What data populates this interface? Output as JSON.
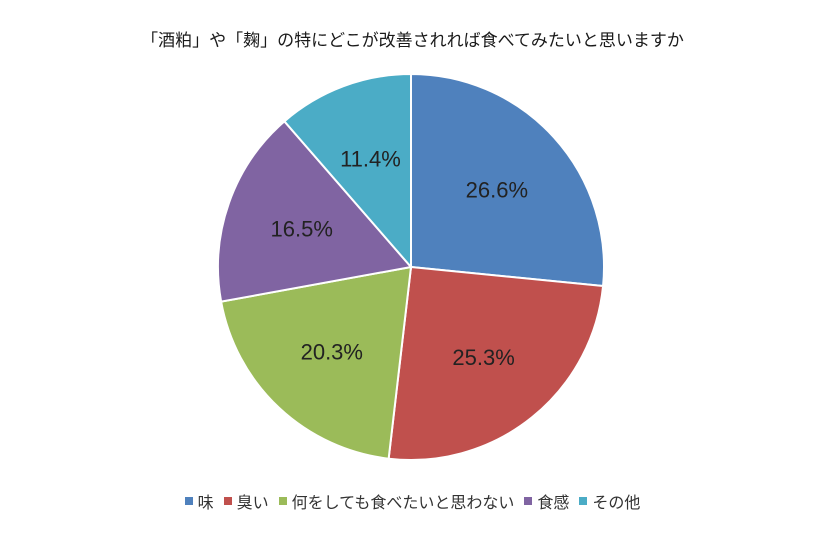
{
  "chart_data": {
    "type": "pie",
    "title": "「酒粕」や「麹」の特にどこが改善されれば食べてみたいと思いますか",
    "slices": [
      {
        "label": "味",
        "value": 26.6,
        "display": "26.6%",
        "color": "#4f81bd"
      },
      {
        "label": "臭い",
        "value": 25.3,
        "display": "25.3%",
        "color": "#c0504d"
      },
      {
        "label": "何をしても食べたいと思わない",
        "value": 20.3,
        "display": "20.3%",
        "color": "#9bbb59"
      },
      {
        "label": "食感",
        "value": 16.5,
        "display": "16.5%",
        "color": "#8064a2"
      },
      {
        "label": "その他",
        "value": 11.4,
        "display": "11.4%",
        "color": "#4bacc6"
      }
    ],
    "legend_position": "bottom"
  }
}
